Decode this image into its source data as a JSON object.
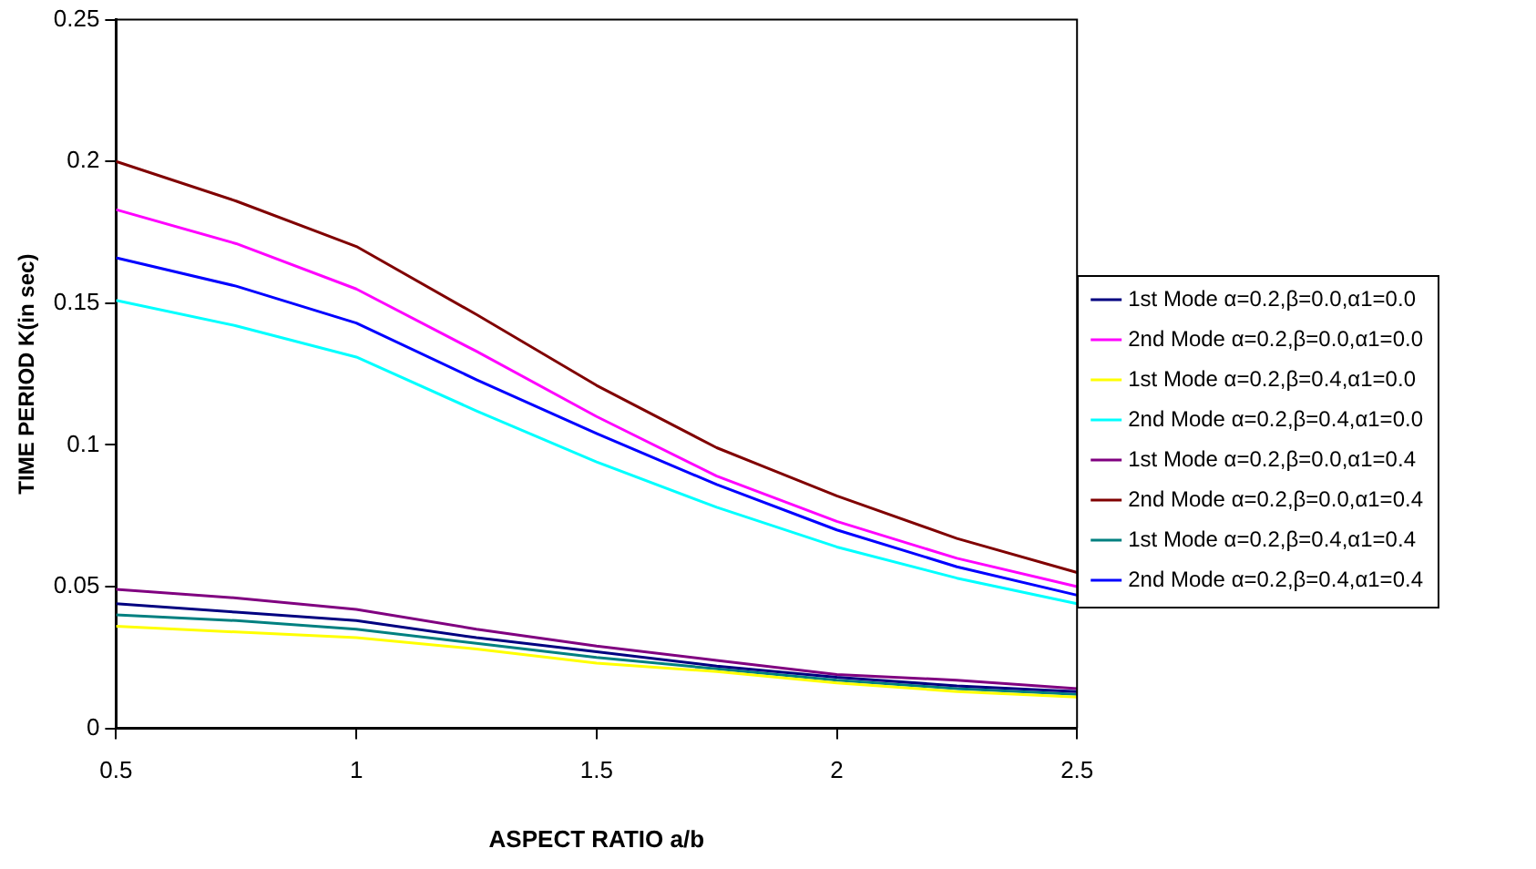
{
  "chart_data": {
    "type": "line",
    "xlabel": "ASPECT RATIO a/b",
    "ylabel": "TIME PERIOD K(in sec)",
    "x": [
      0.5,
      0.75,
      1,
      1.25,
      1.5,
      1.75,
      2,
      2.25,
      2.5
    ],
    "xlim": [
      0.5,
      2.5
    ],
    "xticks": [
      0.5,
      1,
      1.5,
      2,
      2.5
    ],
    "ylim": [
      0,
      0.25
    ],
    "yticks": [
      0,
      0.05,
      0.1,
      0.15,
      0.2,
      0.25
    ],
    "grid": false,
    "legend": "right",
    "marker": "none",
    "line_style": "solid",
    "series": [
      {
        "name": "1st Mode α=0.2,β=0.0,α1=0.0",
        "color": "#000080",
        "values": [
          0.044,
          0.041,
          0.038,
          0.032,
          0.027,
          0.022,
          0.018,
          0.015,
          0.013
        ]
      },
      {
        "name": "2nd Mode α=0.2,β=0.0,α1=0.0",
        "color": "#ff00ff",
        "values": [
          0.183,
          0.171,
          0.155,
          0.133,
          0.11,
          0.089,
          0.073,
          0.06,
          0.05
        ]
      },
      {
        "name": "1st Mode α=0.2,β=0.4,α1=0.0",
        "color": "#ffff00",
        "values": [
          0.036,
          0.034,
          0.032,
          0.028,
          0.023,
          0.02,
          0.016,
          0.013,
          0.011
        ]
      },
      {
        "name": "2nd Mode α=0.2,β=0.4,α1=0.0",
        "color": "#00ffff",
        "values": [
          0.151,
          0.142,
          0.131,
          0.112,
          0.094,
          0.078,
          0.064,
          0.053,
          0.044
        ]
      },
      {
        "name": "1st Mode α=0.2,β=0.0,α1=0.4",
        "color": "#800080",
        "values": [
          0.049,
          0.046,
          0.042,
          0.035,
          0.029,
          0.024,
          0.019,
          0.017,
          0.014
        ]
      },
      {
        "name": "2nd Mode α=0.2,β=0.0,α1=0.4",
        "color": "#800000",
        "values": [
          0.2,
          0.186,
          0.17,
          0.146,
          0.121,
          0.099,
          0.082,
          0.067,
          0.055
        ]
      },
      {
        "name": "1st Mode α=0.2,β=0.4,α1=0.4",
        "color": "#008080",
        "values": [
          0.04,
          0.038,
          0.035,
          0.03,
          0.025,
          0.021,
          0.017,
          0.014,
          0.012
        ]
      },
      {
        "name": "2nd Mode α=0.2,β=0.4,α1=0.4",
        "color": "#0000ff",
        "values": [
          0.166,
          0.156,
          0.143,
          0.123,
          0.104,
          0.086,
          0.07,
          0.057,
          0.047
        ]
      }
    ]
  }
}
